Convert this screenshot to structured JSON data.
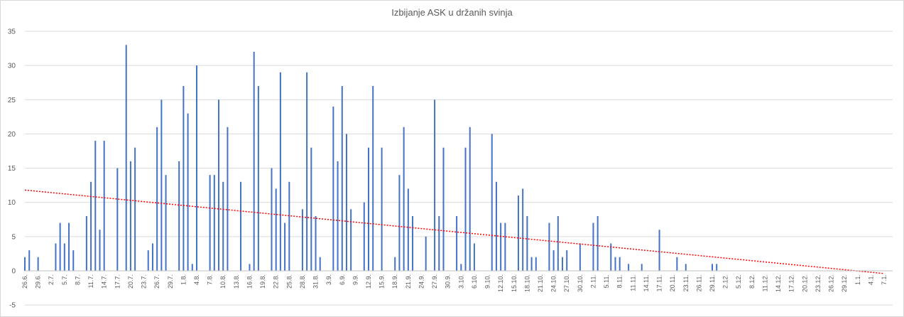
{
  "chart_data": {
    "type": "bar",
    "title": "Izbijanje ASK u držanih svinja",
    "xlabel": "",
    "ylabel": "",
    "ylim": [
      -5,
      35
    ],
    "yticks": [
      -5,
      0,
      5,
      10,
      15,
      20,
      25,
      30,
      35
    ],
    "grid": true,
    "legend": "none",
    "bar_color": "#4472c4",
    "trendline_color": "#ff0000",
    "x_start_date": "2019-06-26",
    "x_end_date": "2020-01-07",
    "tick_labels": [
      "26.6.",
      "29.6.",
      "2.7.",
      "5.7.",
      "8.7.",
      "11.7.",
      "14.7.",
      "17.7.",
      "20.7.",
      "23.7.",
      "26.7.",
      "29.7.",
      "1.8.",
      "4.8.",
      "7.8.",
      "10.8.",
      "13.8.",
      "16.8.",
      "19.8.",
      "22.8.",
      "25.8.",
      "28.8.",
      "31.8.",
      "3.9.",
      "6.9.",
      "9.9.",
      "12.9.",
      "15.9.",
      "18.9.",
      "21.9.",
      "24.9.",
      "27.9.",
      "30.9.",
      "3.10.",
      "6.10.",
      "9.10.",
      "12.10.",
      "15.10.",
      "18.10.",
      "21.10.",
      "24.10.",
      "27.10.",
      "30.10.",
      "2.11.",
      "5.11.",
      "8.11.",
      "11.11.",
      "14.11.",
      "17.11.",
      "20.11.",
      "23.11.",
      "26.11.",
      "29.11.",
      "2.12.",
      "5.12.",
      "8.12.",
      "11.12.",
      "14.12.",
      "17.12.",
      "20.12.",
      "23.12.",
      "26.12.",
      "29.12.",
      "1.1.",
      "4.1.",
      "7.1."
    ],
    "trendline": {
      "type": "linear",
      "start": [
        0,
        11.8
      ],
      "end": [
        195,
        -0.4
      ]
    },
    "points": [
      {
        "date": "26.6.",
        "value": 2
      },
      {
        "date": "27.6.",
        "value": 3
      },
      {
        "date": "29.6.",
        "value": 2
      },
      {
        "date": "3.7.",
        "value": 4
      },
      {
        "date": "4.7.",
        "value": 7
      },
      {
        "date": "5.7.",
        "value": 4
      },
      {
        "date": "6.7.",
        "value": 7
      },
      {
        "date": "7.7.",
        "value": 3
      },
      {
        "date": "10.7.",
        "value": 8
      },
      {
        "date": "11.7.",
        "value": 13
      },
      {
        "date": "12.7.",
        "value": 19
      },
      {
        "date": "13.7.",
        "value": 6
      },
      {
        "date": "14.7.",
        "value": 19
      },
      {
        "date": "17.7.",
        "value": 15
      },
      {
        "date": "19.7.",
        "value": 33
      },
      {
        "date": "20.7.",
        "value": 16
      },
      {
        "date": "21.7.",
        "value": 18
      },
      {
        "date": "24.7.",
        "value": 3
      },
      {
        "date": "25.7.",
        "value": 4
      },
      {
        "date": "26.7.",
        "value": 21
      },
      {
        "date": "27.7.",
        "value": 25
      },
      {
        "date": "28.7.",
        "value": 14
      },
      {
        "date": "31.7.",
        "value": 16
      },
      {
        "date": "1.8.",
        "value": 27
      },
      {
        "date": "2.8.",
        "value": 23
      },
      {
        "date": "3.8.",
        "value": 1
      },
      {
        "date": "4.8.",
        "value": 30
      },
      {
        "date": "7.8.",
        "value": 14
      },
      {
        "date": "8.8.",
        "value": 14
      },
      {
        "date": "9.8.",
        "value": 25
      },
      {
        "date": "10.8.",
        "value": 13
      },
      {
        "date": "11.8.",
        "value": 21
      },
      {
        "date": "14.8.",
        "value": 13
      },
      {
        "date": "16.8.",
        "value": 1
      },
      {
        "date": "17.8.",
        "value": 32
      },
      {
        "date": "18.8.",
        "value": 27
      },
      {
        "date": "21.8.",
        "value": 15
      },
      {
        "date": "22.8.",
        "value": 12
      },
      {
        "date": "23.8.",
        "value": 29
      },
      {
        "date": "24.8.",
        "value": 7
      },
      {
        "date": "25.8.",
        "value": 13
      },
      {
        "date": "28.8.",
        "value": 9
      },
      {
        "date": "29.8.",
        "value": 29
      },
      {
        "date": "30.8.",
        "value": 18
      },
      {
        "date": "31.8.",
        "value": 8
      },
      {
        "date": "1.9.",
        "value": 2
      },
      {
        "date": "4.9.",
        "value": 24
      },
      {
        "date": "5.9.",
        "value": 16
      },
      {
        "date": "6.9.",
        "value": 27
      },
      {
        "date": "7.9.",
        "value": 20
      },
      {
        "date": "8.9.",
        "value": 9
      },
      {
        "date": "11.9.",
        "value": 10
      },
      {
        "date": "12.9.",
        "value": 18
      },
      {
        "date": "13.9.",
        "value": 27
      },
      {
        "date": "15.9.",
        "value": 18
      },
      {
        "date": "18.9.",
        "value": 2
      },
      {
        "date": "19.9.",
        "value": 14
      },
      {
        "date": "20.9.",
        "value": 21
      },
      {
        "date": "21.9.",
        "value": 12
      },
      {
        "date": "22.9.",
        "value": 8
      },
      {
        "date": "25.9.",
        "value": 5
      },
      {
        "date": "27.9.",
        "value": 25
      },
      {
        "date": "28.9.",
        "value": 8
      },
      {
        "date": "29.9.",
        "value": 18
      },
      {
        "date": "2.10.",
        "value": 8
      },
      {
        "date": "3.10.",
        "value": 1
      },
      {
        "date": "4.10.",
        "value": 18
      },
      {
        "date": "5.10.",
        "value": 21
      },
      {
        "date": "6.10.",
        "value": 4
      },
      {
        "date": "10.10.",
        "value": 20
      },
      {
        "date": "11.10.",
        "value": 13
      },
      {
        "date": "12.10.",
        "value": 7
      },
      {
        "date": "13.10.",
        "value": 7
      },
      {
        "date": "16.10.",
        "value": 11
      },
      {
        "date": "17.10.",
        "value": 12
      },
      {
        "date": "18.10.",
        "value": 8
      },
      {
        "date": "19.10.",
        "value": 2
      },
      {
        "date": "20.10.",
        "value": 2
      },
      {
        "date": "23.10.",
        "value": 7
      },
      {
        "date": "24.10.",
        "value": 3
      },
      {
        "date": "25.10.",
        "value": 8
      },
      {
        "date": "26.10.",
        "value": 2
      },
      {
        "date": "27.10.",
        "value": 3
      },
      {
        "date": "30.10.",
        "value": 4
      },
      {
        "date": "2.11.",
        "value": 7
      },
      {
        "date": "3.11.",
        "value": 8
      },
      {
        "date": "6.11.",
        "value": 4
      },
      {
        "date": "7.11.",
        "value": 2
      },
      {
        "date": "8.11.",
        "value": 2
      },
      {
        "date": "10.11.",
        "value": 1
      },
      {
        "date": "13.11.",
        "value": 1
      },
      {
        "date": "17.11.",
        "value": 6
      },
      {
        "date": "21.11.",
        "value": 2
      },
      {
        "date": "23.11.",
        "value": 1
      },
      {
        "date": "29.11.",
        "value": 1
      },
      {
        "date": "30.11.",
        "value": 1
      }
    ]
  }
}
